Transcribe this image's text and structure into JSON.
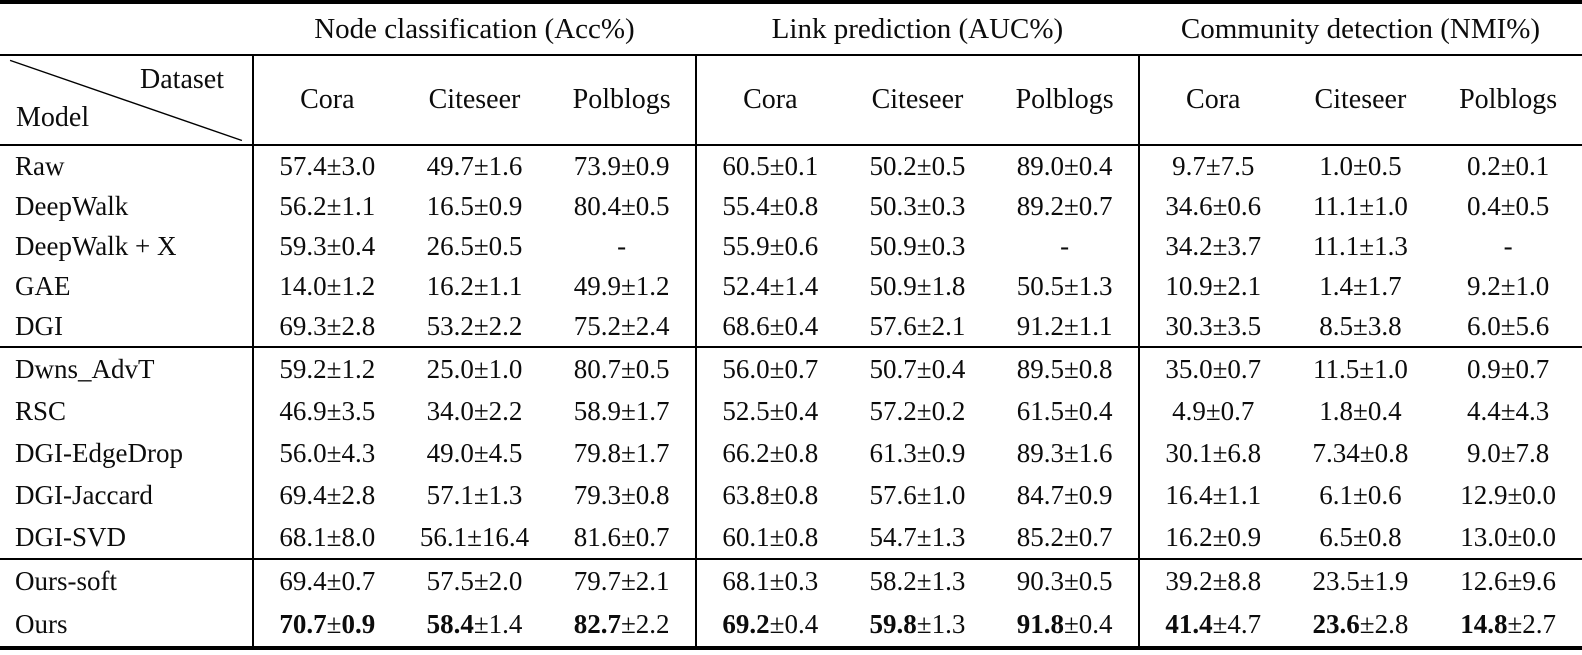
{
  "table": {
    "header": {
      "groups": [
        {
          "label": "Node classification (Acc%)"
        },
        {
          "label": "Link prediction (AUC%)"
        },
        {
          "label": "Community detection (NMI%)"
        }
      ],
      "corner": {
        "top_right": "Dataset",
        "bottom_left": "Model"
      },
      "datasets": [
        "Cora",
        "Citeseer",
        "Polblogs"
      ]
    },
    "row_groups": [
      {
        "name": "baselines",
        "rows": [
          {
            "model": "Raw",
            "cells": [
              "57.4±3.0",
              "49.7±1.6",
              "73.9±0.9",
              "60.5±0.1",
              "50.2±0.5",
              "89.0±0.4",
              "9.7±7.5",
              "1.0±0.5",
              "0.2±0.1"
            ]
          },
          {
            "model": "DeepWalk",
            "cells": [
              "56.2±1.1",
              "16.5±0.9",
              "80.4±0.5",
              "55.4±0.8",
              "50.3±0.3",
              "89.2±0.7",
              "34.6±0.6",
              "11.1±1.0",
              "0.4±0.5"
            ]
          },
          {
            "model": "DeepWalk + X",
            "cells": [
              "59.3±0.4",
              "26.5±0.5",
              "-",
              "55.9±0.6",
              "50.9±0.3",
              "-",
              "34.2±3.7",
              "11.1±1.3",
              "-"
            ]
          },
          {
            "model": "GAE",
            "cells": [
              "14.0±1.2",
              "16.2±1.1",
              "49.9±1.2",
              "52.4±1.4",
              "50.9±1.8",
              "50.5±1.3",
              "10.9±2.1",
              "1.4±1.7",
              "9.2±1.0"
            ]
          },
          {
            "model": "DGI",
            "cells": [
              "69.3±2.8",
              "53.2±2.2",
              "75.2±2.4",
              "68.6±0.4",
              "57.6±2.1",
              "91.2±1.1",
              "30.3±3.5",
              "8.5±3.8",
              "6.0±5.6"
            ]
          }
        ]
      },
      {
        "name": "robust-baselines",
        "rows": [
          {
            "model": "Dwns_AdvT",
            "cells": [
              "59.2±1.2",
              "25.0±1.0",
              "80.7±0.5",
              "56.0±0.7",
              "50.7±0.4",
              "89.5±0.8",
              "35.0±0.7",
              "11.5±1.0",
              "0.9±0.7"
            ]
          },
          {
            "model": "RSC",
            "cells": [
              "46.9±3.5",
              "34.0±2.2",
              "58.9±1.7",
              "52.5±0.4",
              "57.2±0.2",
              "61.5±0.4",
              "4.9±0.7",
              "1.8±0.4",
              "4.4±4.3"
            ]
          },
          {
            "model": "DGI-EdgeDrop",
            "cells": [
              "56.0±4.3",
              "49.0±4.5",
              "79.8±1.7",
              "66.2±0.8",
              "61.3±0.9",
              "89.3±1.6",
              "30.1±6.8",
              "7.34±0.8",
              "9.0±7.8"
            ]
          },
          {
            "model": "DGI-Jaccard",
            "cells": [
              "69.4±2.8",
              "57.1±1.3",
              "79.3±0.8",
              "63.8±0.8",
              "57.6±1.0",
              "84.7±0.9",
              "16.4±1.1",
              "6.1±0.6",
              "12.9±0.0"
            ]
          },
          {
            "model": "DGI-SVD",
            "cells": [
              "68.1±8.0",
              "56.1±16.4",
              "81.6±0.7",
              "60.1±0.8",
              "54.7±1.3",
              "85.2±0.7",
              "16.2±0.9",
              "6.5±0.8",
              "13.0±0.0"
            ]
          }
        ]
      },
      {
        "name": "ours",
        "rows": [
          {
            "model": "Ours-soft",
            "cells": [
              "69.4±0.7",
              "57.5±2.0",
              "79.7±2.1",
              "68.1±0.3",
              "58.2±1.3",
              "90.3±0.5",
              "39.2±8.8",
              "23.5±1.9",
              "12.6±9.6"
            ]
          },
          {
            "model": "Ours",
            "cells": [
              [
                {
                  "t": "70.7",
                  "b": true
                },
                {
                  "t": "±",
                  "b": false
                },
                {
                  "t": "0.9",
                  "b": true
                }
              ],
              [
                {
                  "t": "58.4",
                  "b": true
                },
                {
                  "t": "±1.4",
                  "b": false
                }
              ],
              [
                {
                  "t": "82.7",
                  "b": true
                },
                {
                  "t": "±2.2",
                  "b": false
                }
              ],
              [
                {
                  "t": "69.2",
                  "b": true
                },
                {
                  "t": "±0.4",
                  "b": false
                }
              ],
              [
                {
                  "t": "59.8",
                  "b": true
                },
                {
                  "t": "±1.3",
                  "b": false
                }
              ],
              [
                {
                  "t": "91.8",
                  "b": true
                },
                {
                  "t": "±0.4",
                  "b": false
                }
              ],
              [
                {
                  "t": "41.4",
                  "b": true
                },
                {
                  "t": "±4.7",
                  "b": false
                }
              ],
              [
                {
                  "t": "23.6",
                  "b": true
                },
                {
                  "t": "±2.8",
                  "b": false
                }
              ],
              [
                {
                  "t": "14.8",
                  "b": true
                },
                {
                  "t": "±2.7",
                  "b": false
                }
              ]
            ]
          }
        ]
      }
    ],
    "colors": {
      "text": "#0c0c0c",
      "rule": "#000000",
      "background": "#ffffff"
    }
  }
}
